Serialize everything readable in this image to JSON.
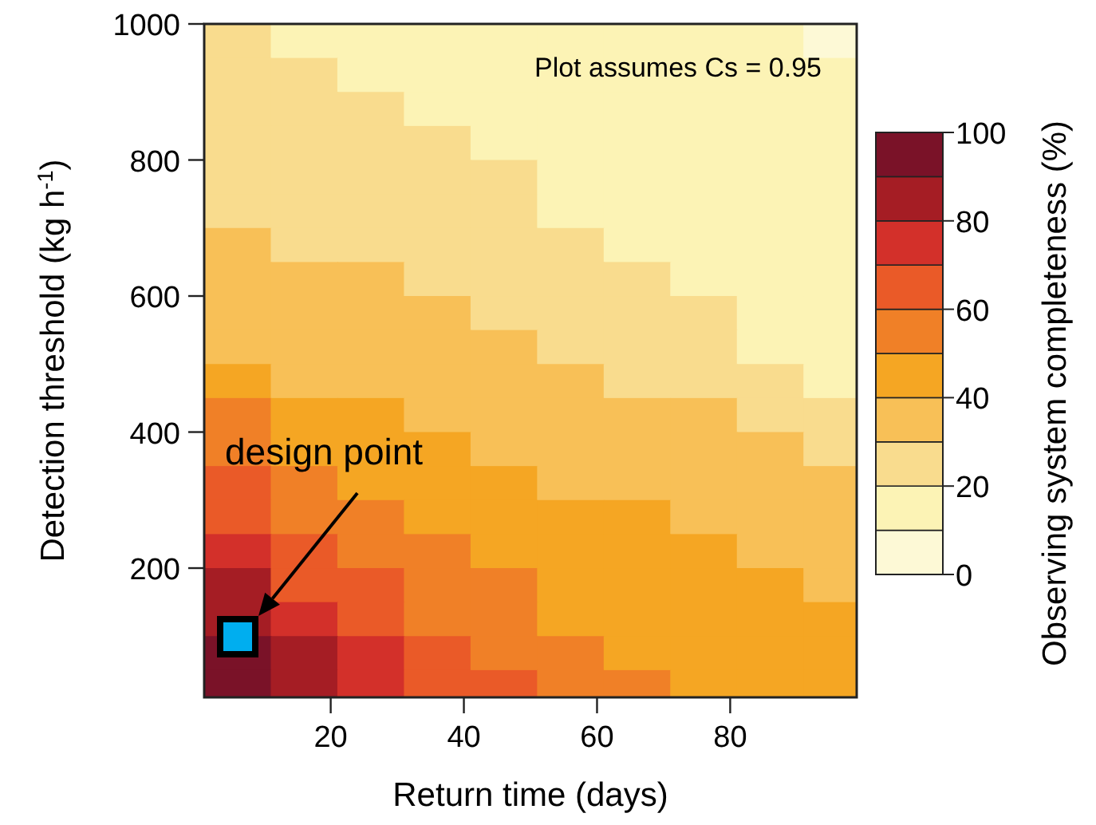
{
  "chart_data": {
    "type": "heatmap",
    "xlabel": "Return time (days)",
    "ylabel": "Detection threshold (kg h$^{-1}$)",
    "clabel": "Observing system completeness (%)",
    "x": [
      6,
      16,
      26,
      36,
      46,
      56,
      66,
      76,
      86,
      96
    ],
    "y": [
      975,
      925,
      875,
      825,
      775,
      725,
      675,
      625,
      575,
      525,
      475,
      425,
      375,
      325,
      275,
      225,
      175,
      125,
      75,
      25
    ],
    "cells": [
      [
        25,
        15,
        15,
        15,
        15,
        15,
        15,
        15,
        15,
        5
      ],
      [
        25,
        25,
        15,
        15,
        15,
        15,
        15,
        15,
        15,
        15
      ],
      [
        25,
        25,
        25,
        15,
        15,
        15,
        15,
        15,
        15,
        15
      ],
      [
        25,
        25,
        25,
        25,
        15,
        15,
        15,
        15,
        15,
        15
      ],
      [
        25,
        25,
        25,
        25,
        25,
        15,
        15,
        15,
        15,
        15
      ],
      [
        25,
        25,
        25,
        25,
        25,
        15,
        15,
        15,
        15,
        15
      ],
      [
        35,
        25,
        25,
        25,
        25,
        25,
        15,
        15,
        15,
        15
      ],
      [
        35,
        35,
        35,
        25,
        25,
        25,
        25,
        15,
        15,
        15
      ],
      [
        35,
        35,
        35,
        35,
        25,
        25,
        25,
        25,
        15,
        15
      ],
      [
        35,
        35,
        35,
        35,
        35,
        25,
        25,
        25,
        15,
        15
      ],
      [
        45,
        35,
        35,
        35,
        35,
        35,
        25,
        25,
        25,
        15
      ],
      [
        55,
        45,
        45,
        35,
        35,
        35,
        35,
        35,
        25,
        25
      ],
      [
        55,
        45,
        45,
        45,
        35,
        35,
        35,
        35,
        35,
        25
      ],
      [
        65,
        55,
        45,
        45,
        45,
        35,
        35,
        35,
        35,
        35
      ],
      [
        65,
        55,
        55,
        45,
        45,
        45,
        45,
        35,
        35,
        35
      ],
      [
        75,
        65,
        55,
        55,
        45,
        45,
        45,
        45,
        35,
        35
      ],
      [
        85,
        65,
        65,
        55,
        55,
        45,
        45,
        45,
        45,
        35
      ],
      [
        85,
        75,
        65,
        55,
        55,
        45,
        45,
        45,
        45,
        45
      ],
      [
        95,
        85,
        75,
        65,
        55,
        55,
        45,
        45,
        45,
        45
      ],
      [
        95,
        85,
        75,
        65,
        65,
        55,
        55,
        45,
        45,
        45
      ]
    ],
    "colors": [
      "#fdf9d6",
      "#fcf3b5",
      "#f9dc8e",
      "#f8c057",
      "#f5a623",
      "#f08027",
      "#ea5a28",
      "#d3302a",
      "#a51d24",
      "#7a1228"
    ],
    "clim": [
      0,
      100
    ],
    "cticks": [
      0,
      20,
      40,
      60,
      80,
      100
    ],
    "xlim": [
      1,
      99
    ],
    "xticks": [
      20,
      40,
      60,
      80
    ],
    "ylim": [
      10,
      1000
    ],
    "yticks": [
      200,
      400,
      600,
      800,
      1000
    ],
    "annotations": [
      "design point",
      "Plot assumes Cs = 0.95"
    ]
  }
}
